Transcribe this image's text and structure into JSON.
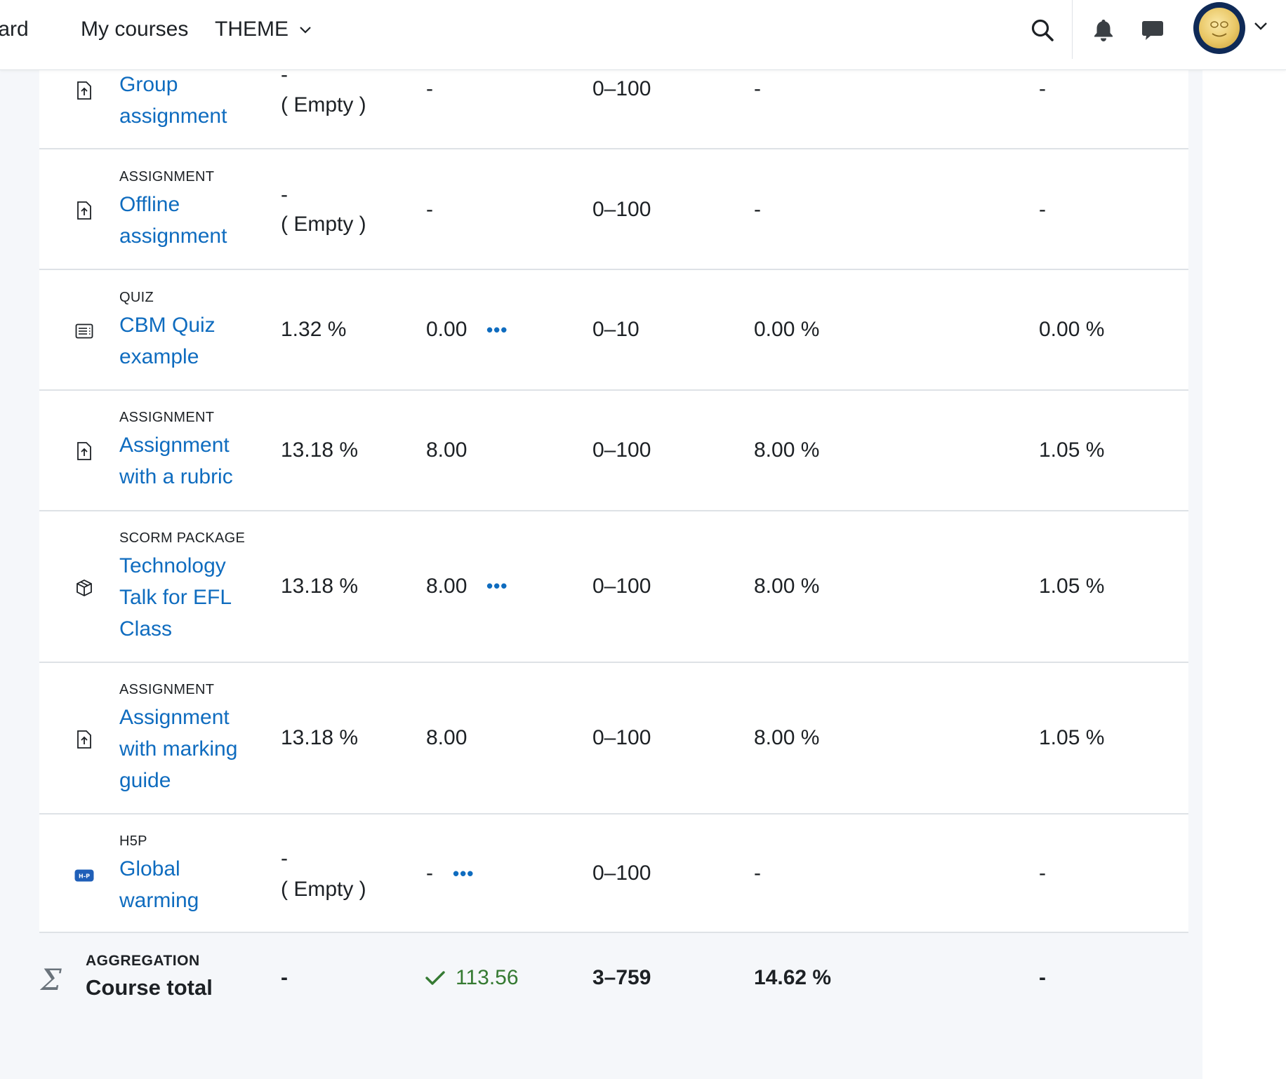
{
  "navbar": {
    "dashboard_label": "board",
    "my_courses_label": "My courses",
    "theme_label": "THEME"
  },
  "icons": {
    "search": "search-icon",
    "notifications": "bell-icon",
    "messages": "chat-icon",
    "avatar_menu": "chevron-down-icon"
  },
  "colors": {
    "link": "#0f6cbf",
    "success": "#357a32",
    "page_bg": "#f5f7fa"
  },
  "grade_items": [
    {
      "type": "",
      "name": "Group assignment",
      "icon": "assignment-icon",
      "weight": "-",
      "weight_note": "( Empty )",
      "grade": "-",
      "has_menu": false,
      "range": "0–100",
      "percentage": "-",
      "contribution": "-"
    },
    {
      "type": "ASSIGNMENT",
      "name": "Offline assignment",
      "icon": "assignment-icon",
      "weight": "-",
      "weight_note": "( Empty )",
      "grade": "-",
      "has_menu": false,
      "range": "0–100",
      "percentage": "-",
      "contribution": "-"
    },
    {
      "type": "QUIZ",
      "name": "CBM Quiz example",
      "icon": "quiz-icon",
      "weight": "1.32 %",
      "grade": "0.00",
      "has_menu": true,
      "range": "0–10",
      "percentage": "0.00 %",
      "contribution": "0.00 %"
    },
    {
      "type": "ASSIGNMENT",
      "name": "Assignment with a rubric",
      "icon": "assignment-icon",
      "weight": "13.18 %",
      "grade": "8.00",
      "has_menu": false,
      "range": "0–100",
      "percentage": "8.00 %",
      "contribution": "1.05 %"
    },
    {
      "type": "SCORM PACKAGE",
      "name": "Technology Talk for EFL Class",
      "icon": "scorm-package-icon",
      "weight": "13.18 %",
      "grade": "8.00",
      "has_menu": true,
      "range": "0–100",
      "percentage": "8.00 %",
      "contribution": "1.05 %"
    },
    {
      "type": "ASSIGNMENT",
      "name": "Assignment with marking guide",
      "icon": "assignment-icon",
      "weight": "13.18 %",
      "grade": "8.00",
      "has_menu": false,
      "range": "0–100",
      "percentage": "8.00 %",
      "contribution": "1.05 %"
    },
    {
      "type": "H5P",
      "name": "Global warming",
      "icon": "h5p-icon",
      "icon_text": "H-P",
      "weight": "-",
      "weight_note": "( Empty )",
      "grade": "-",
      "has_menu": true,
      "range": "0–100",
      "percentage": "-",
      "contribution": "-"
    }
  ],
  "menu_glyph": "•••",
  "course_total": {
    "label": "AGGREGATION",
    "title": "Course total",
    "weight": "-",
    "grade": "113.56",
    "range": "3–759",
    "percentage": "14.62 %",
    "contribution": "-"
  }
}
